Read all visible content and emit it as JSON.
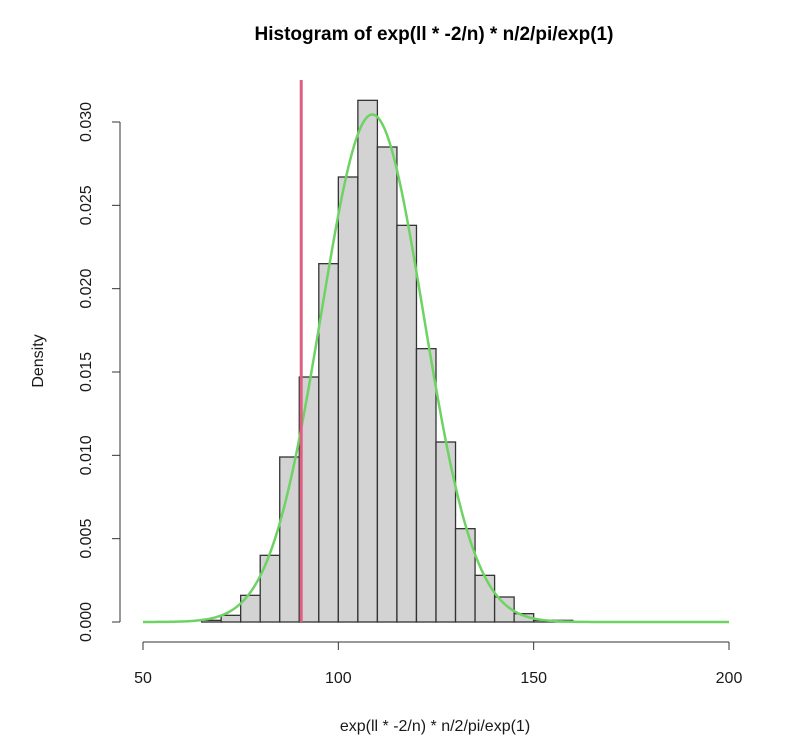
{
  "chart_data": {
    "type": "bar",
    "title": "Histogram of exp(ll * -2/n) * n/2/pi/exp(1)",
    "xlabel": "exp(ll * -2/n) * n/2/pi/exp(1)",
    "ylabel": "Density",
    "xlim": [
      50,
      200
    ],
    "ylim": [
      0,
      0.03
    ],
    "x_ticks": [
      "50",
      "100",
      "150",
      "200"
    ],
    "x_tick_values": [
      50,
      100,
      150,
      200
    ],
    "y_ticks": [
      "0.000",
      "0.005",
      "0.010",
      "0.015",
      "0.020",
      "0.025",
      "0.030"
    ],
    "y_tick_values": [
      0,
      0.005,
      0.01,
      0.015,
      0.02,
      0.025,
      0.03
    ],
    "bin_width": 5,
    "bins": [
      {
        "from": 65,
        "to": 70,
        "density": 0.0001
      },
      {
        "from": 70,
        "to": 75,
        "density": 0.0004
      },
      {
        "from": 75,
        "to": 80,
        "density": 0.0016
      },
      {
        "from": 80,
        "to": 85,
        "density": 0.004
      },
      {
        "from": 85,
        "to": 90,
        "density": 0.0099
      },
      {
        "from": 90,
        "to": 95,
        "density": 0.0147
      },
      {
        "from": 95,
        "to": 100,
        "density": 0.0215
      },
      {
        "from": 100,
        "to": 105,
        "density": 0.0267
      },
      {
        "from": 105,
        "to": 110,
        "density": 0.0313
      },
      {
        "from": 110,
        "to": 115,
        "density": 0.0285
      },
      {
        "from": 115,
        "to": 120,
        "density": 0.0238
      },
      {
        "from": 120,
        "to": 125,
        "density": 0.0164
      },
      {
        "from": 125,
        "to": 130,
        "density": 0.0108
      },
      {
        "from": 130,
        "to": 135,
        "density": 0.0056
      },
      {
        "from": 135,
        "to": 140,
        "density": 0.0028
      },
      {
        "from": 140,
        "to": 145,
        "density": 0.0015
      },
      {
        "from": 145,
        "to": 150,
        "density": 0.0005
      },
      {
        "from": 150,
        "to": 155,
        "density": 0.0001
      },
      {
        "from": 155,
        "to": 160,
        "density": 0.0001
      }
    ],
    "density_curve": {
      "type": "normal",
      "mean": 108.7,
      "sd": 13.1,
      "x_range": [
        50,
        200
      ],
      "color": "#6DD362"
    },
    "reference_line": {
      "orientation": "vertical",
      "x": 90.5,
      "color": "#DF5F82"
    },
    "bar_fill": "#D3D3D3",
    "bar_stroke": "#333333",
    "grid": false,
    "legend": null
  }
}
